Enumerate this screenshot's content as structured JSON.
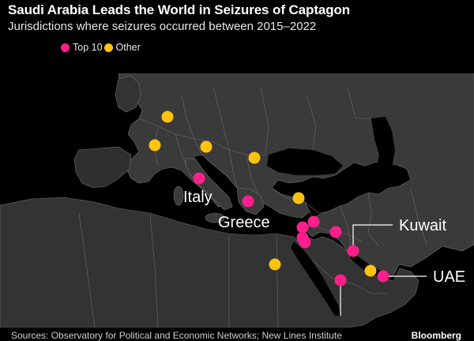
{
  "header": {
    "title": "Saudi Arabia Leads the World in Seizures of Captagon",
    "subtitle": "Jurisdictions where seizures occurred between 2015–2022"
  },
  "legend": {
    "items": [
      {
        "label": "Top 10",
        "color": "#ff1e8c"
      },
      {
        "label": "Other",
        "color": "#ffc20e"
      }
    ]
  },
  "map": {
    "labels": [
      "Italy",
      "Greece",
      "Kuwait",
      "UAE"
    ]
  },
  "footer": {
    "source": "Sources: Observatory for Political and Economic Networks; New Lines Institute",
    "brand": "Bloomberg"
  },
  "colors": {
    "top10": "#ff1e8c",
    "other": "#ffc20e",
    "land": "#3a3a3a",
    "sea": "#000000",
    "border": "#7a7a7a"
  }
}
